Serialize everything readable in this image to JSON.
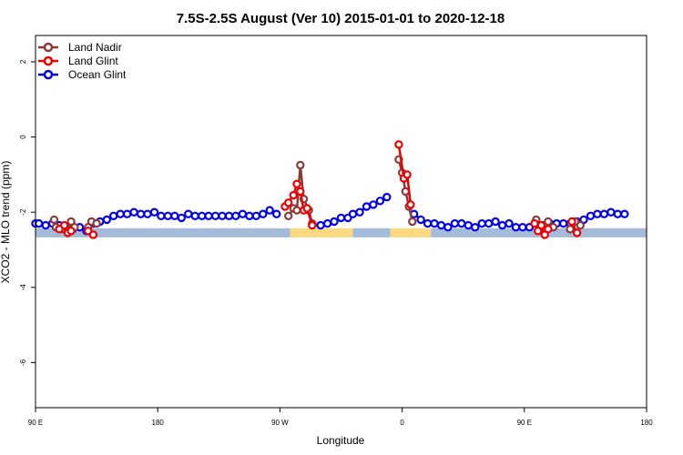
{
  "chart_data": {
    "type": "line",
    "title": "7.5S-2.5S August (Ver 10)   2015-01-01 to 2020-12-18",
    "xlabel": "Longitude",
    "ylabel": "XCO2 - MLO trend (ppm)",
    "xlim": [
      90,
      450
    ],
    "ylim": [
      -7.2,
      2.7
    ],
    "x_ticks": [
      {
        "value": 90,
        "label": "90 E"
      },
      {
        "value": 162,
        "label": "180"
      },
      {
        "value": 234,
        "label": "90 W"
      },
      {
        "value": 306,
        "label": "0"
      },
      {
        "value": 378,
        "label": "90 E"
      },
      {
        "value": 450,
        "label": "180"
      }
    ],
    "y_ticks": [
      {
        "value": 2,
        "label": "2"
      },
      {
        "value": 0,
        "label": "0"
      },
      {
        "value": -2,
        "label": "-2"
      },
      {
        "value": -4,
        "label": "-4"
      },
      {
        "value": -6,
        "label": "-6"
      }
    ],
    "surface_bands": [
      {
        "name": "ocean",
        "color": "#a4bcd9",
        "x_start": 90,
        "x_end": 240
      },
      {
        "name": "land",
        "color": "#fcd97e",
        "x_start": 240,
        "x_end": 277
      },
      {
        "name": "ocean",
        "color": "#a4bcd9",
        "x_start": 277,
        "x_end": 299
      },
      {
        "name": "land",
        "color": "#fcd97e",
        "x_start": 299,
        "x_end": 323
      },
      {
        "name": "ocean",
        "color": "#a4bcd9",
        "x_start": 323,
        "x_end": 450
      }
    ],
    "band_y": -2.55,
    "series": [
      {
        "name": "Land Nadir",
        "color": "#8b3a3a",
        "points": [
          [
            101,
            -2.2
          ],
          [
            102,
            -2.4
          ],
          [
            106,
            -2.45
          ],
          [
            109,
            -2.5
          ],
          [
            111,
            -2.25
          ],
          [
            113,
            -2.4
          ],
          [
            121,
            -2.4
          ],
          [
            123,
            -2.25
          ],
          [
            126,
            -2.3
          ],
          [
            239,
            -2.1
          ],
          [
            242,
            -1.9
          ],
          [
            244,
            -1.95
          ],
          [
            246,
            -0.75
          ],
          [
            248,
            -1.65
          ],
          [
            251,
            -1.95
          ],
          [
            253,
            -2.3
          ],
          [
            304,
            -0.6
          ],
          [
            306,
            -0.95
          ],
          [
            308,
            -1.45
          ],
          [
            310,
            -1.85
          ],
          [
            312,
            -2.25
          ],
          [
            385,
            -2.2
          ],
          [
            387,
            -2.45
          ],
          [
            390,
            -2.4
          ],
          [
            392,
            -2.25
          ],
          [
            395,
            -2.4
          ],
          [
            405,
            -2.45
          ],
          [
            408,
            -2.25
          ],
          [
            411,
            -2.35
          ]
        ]
      },
      {
        "name": "Land Glint",
        "color": "#ee0000",
        "points": [
          [
            104,
            -2.45
          ],
          [
            107,
            -2.35
          ],
          [
            109,
            -2.55
          ],
          [
            111,
            -2.5
          ],
          [
            121,
            -2.5
          ],
          [
            124,
            -2.6
          ],
          [
            237,
            -1.85
          ],
          [
            239,
            -1.75
          ],
          [
            242,
            -1.55
          ],
          [
            244,
            -1.25
          ],
          [
            246,
            -1.45
          ],
          [
            248,
            -1.95
          ],
          [
            250,
            -1.9
          ],
          [
            253,
            -2.35
          ],
          [
            304,
            -0.2
          ],
          [
            307,
            -1.1
          ],
          [
            309,
            -1.0
          ],
          [
            311,
            -1.8
          ],
          [
            384,
            -2.3
          ],
          [
            386,
            -2.5
          ],
          [
            388,
            -2.35
          ],
          [
            390,
            -2.6
          ],
          [
            392,
            -2.45
          ],
          [
            406,
            -2.25
          ],
          [
            409,
            -2.55
          ]
        ]
      },
      {
        "name": "Ocean Glint",
        "color": "#0000ee",
        "points": [
          [
            90,
            -2.3
          ],
          [
            92,
            -2.3
          ],
          [
            96,
            -2.35
          ],
          [
            100,
            -2.3
          ],
          [
            104,
            -2.35
          ],
          [
            108,
            -2.4
          ],
          [
            112,
            -2.45
          ],
          [
            116,
            -2.4
          ],
          [
            120,
            -2.5
          ],
          [
            124,
            -2.3
          ],
          [
            128,
            -2.25
          ],
          [
            132,
            -2.2
          ],
          [
            136,
            -2.1
          ],
          [
            140,
            -2.05
          ],
          [
            144,
            -2.05
          ],
          [
            148,
            -2.0
          ],
          [
            152,
            -2.05
          ],
          [
            156,
            -2.05
          ],
          [
            160,
            -2.0
          ],
          [
            164,
            -2.1
          ],
          [
            168,
            -2.1
          ],
          [
            172,
            -2.1
          ],
          [
            176,
            -2.15
          ],
          [
            180,
            -2.05
          ],
          [
            184,
            -2.1
          ],
          [
            188,
            -2.1
          ],
          [
            192,
            -2.1
          ],
          [
            196,
            -2.1
          ],
          [
            200,
            -2.1
          ],
          [
            204,
            -2.1
          ],
          [
            208,
            -2.1
          ],
          [
            212,
            -2.05
          ],
          [
            216,
            -2.1
          ],
          [
            220,
            -2.1
          ],
          [
            224,
            -2.05
          ],
          [
            228,
            -1.95
          ],
          [
            232,
            -2.05
          ],
          [
            258,
            -2.35
          ],
          [
            262,
            -2.3
          ],
          [
            266,
            -2.25
          ],
          [
            270,
            -2.15
          ],
          [
            274,
            -2.15
          ],
          [
            277,
            -2.05
          ],
          [
            281,
            -2.0
          ],
          [
            285,
            -1.85
          ],
          [
            289,
            -1.8
          ],
          [
            293,
            -1.7
          ],
          [
            297,
            -1.6
          ],
          [
            313,
            -2.05
          ],
          [
            317,
            -2.2
          ],
          [
            321,
            -2.3
          ],
          [
            325,
            -2.3
          ],
          [
            329,
            -2.35
          ],
          [
            333,
            -2.4
          ],
          [
            337,
            -2.3
          ],
          [
            341,
            -2.3
          ],
          [
            345,
            -2.35
          ],
          [
            349,
            -2.4
          ],
          [
            353,
            -2.3
          ],
          [
            357,
            -2.3
          ],
          [
            361,
            -2.25
          ],
          [
            365,
            -2.35
          ],
          [
            369,
            -2.3
          ],
          [
            373,
            -2.4
          ],
          [
            377,
            -2.4
          ],
          [
            381,
            -2.4
          ],
          [
            385,
            -2.3
          ],
          [
            389,
            -2.35
          ],
          [
            393,
            -2.3
          ],
          [
            397,
            -2.3
          ],
          [
            401,
            -2.3
          ],
          [
            405,
            -2.3
          ],
          [
            409,
            -2.25
          ],
          [
            413,
            -2.2
          ],
          [
            417,
            -2.1
          ],
          [
            421,
            -2.05
          ],
          [
            425,
            -2.05
          ],
          [
            429,
            -2.0
          ],
          [
            433,
            -2.05
          ],
          [
            437,
            -2.05
          ]
        ]
      }
    ],
    "legend": [
      {
        "label": "Land Nadir",
        "color": "#8b3a3a",
        "position": "top-left"
      },
      {
        "label": "Land Glint",
        "color": "#ee0000",
        "position": "top-left"
      },
      {
        "label": "Ocean Glint",
        "color": "#0000ee",
        "position": "top-left"
      }
    ]
  }
}
